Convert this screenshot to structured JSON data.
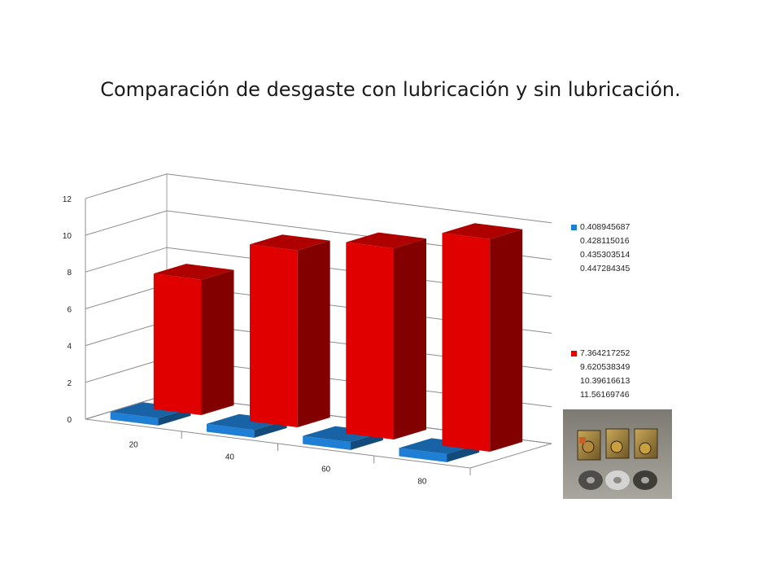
{
  "slide": {
    "title": "Comparación de desgaste con lubricación y sin lubricación."
  },
  "chart_data": {
    "type": "bar",
    "style": "3d-column",
    "categories": [
      "20",
      "40",
      "60",
      "80"
    ],
    "series": [
      {
        "name_lines": [
          "0.408945687",
          "0.428115016",
          "0.435303514",
          "0.447284345"
        ],
        "values": [
          0.408945687,
          0.428115016,
          0.435303514,
          0.447284345
        ],
        "color": "#1f7fd4"
      },
      {
        "name_lines": [
          "7.364217252",
          "9.620538349",
          "10.39616613",
          "11.56169746"
        ],
        "values": [
          7.364217252,
          9.620538349,
          10.39616613,
          11.56169746
        ],
        "color": "#e00000"
      }
    ],
    "y_ticks": [
      "0",
      "2",
      "4",
      "6",
      "8",
      "10",
      "12"
    ],
    "ylim": [
      0,
      12
    ],
    "grid": true,
    "legend_position": "right"
  },
  "photo": {
    "description_icon": "washers-and-blocks-photo"
  }
}
